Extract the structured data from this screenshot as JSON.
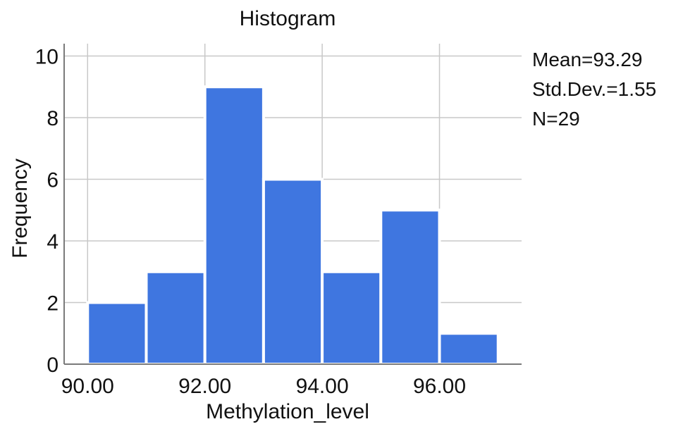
{
  "chart_data": {
    "type": "bar",
    "title": "Histogram",
    "xlabel": "Methylation_level",
    "ylabel": "Frequency",
    "bins": [
      {
        "start": 90.0,
        "end": 91.0,
        "count": 2
      },
      {
        "start": 91.0,
        "end": 92.0,
        "count": 3
      },
      {
        "start": 92.0,
        "end": 93.0,
        "count": 9
      },
      {
        "start": 93.0,
        "end": 94.0,
        "count": 6
      },
      {
        "start": 94.0,
        "end": 95.0,
        "count": 3
      },
      {
        "start": 95.0,
        "end": 96.0,
        "count": 5
      },
      {
        "start": 96.0,
        "end": 97.0,
        "count": 1
      }
    ],
    "xlim": [
      89.6,
      97.4
    ],
    "ylim": [
      0,
      10.4
    ],
    "xticks": [
      90,
      92,
      94,
      96
    ],
    "xtick_labels": [
      "90.00",
      "92.00",
      "94.00",
      "96.00"
    ],
    "yticks": [
      0,
      2,
      4,
      6,
      8,
      10
    ],
    "ytick_labels": [
      "0",
      "2",
      "4",
      "6",
      "8",
      "10"
    ],
    "grid": true,
    "stats": [
      "Mean=93.29",
      "Std.Dev.=1.55",
      "N=29"
    ],
    "colors": {
      "bar": "#3f76e0",
      "bar_edge": "#ffffff",
      "grid": "#c8c8c8",
      "axis": "#7a7a7a"
    }
  }
}
